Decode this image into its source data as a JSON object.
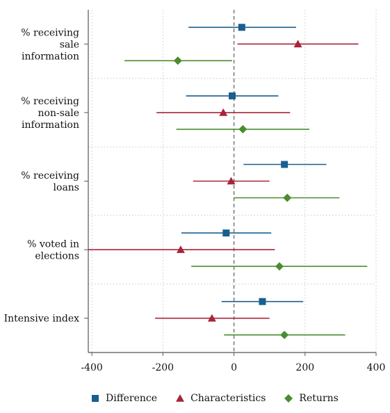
{
  "chart_data": {
    "type": "scatter",
    "subtype": "coefficient-plot",
    "orientation": "horizontal",
    "title": "",
    "xlabel": "",
    "ylabel": "",
    "xlim": [
      -410,
      400
    ],
    "xticks": [
      -400,
      -200,
      0,
      200,
      400
    ],
    "xtick_labels": [
      "-400",
      "-200",
      "0",
      "200",
      "400"
    ],
    "reference_line": 0,
    "grid": true,
    "legend_position": "bottom",
    "categories": [
      "% receiving\nsale\ninformation",
      "% receiving\nnon-sale\ninformation",
      "% receiving\nloans",
      "% voted in\nelections",
      "Intensive index"
    ],
    "series": [
      {
        "name": "Difference",
        "color": "#1b5e8f",
        "marker": "square",
        "points": [
          {
            "est": 22,
            "lo": -128,
            "hi": 175
          },
          {
            "est": -5,
            "lo": -135,
            "hi": 125
          },
          {
            "est": 142,
            "lo": 27,
            "hi": 260
          },
          {
            "est": -22,
            "lo": -148,
            "hi": 105
          },
          {
            "est": 80,
            "lo": -35,
            "hi": 195
          }
        ]
      },
      {
        "name": "Characteristics",
        "color": "#a8243a",
        "marker": "triangle",
        "points": [
          {
            "est": 180,
            "lo": 10,
            "hi": 350
          },
          {
            "est": -30,
            "lo": -218,
            "hi": 158
          },
          {
            "est": -8,
            "lo": -115,
            "hi": 100
          },
          {
            "est": -150,
            "lo": -410,
            "hi": 115
          },
          {
            "est": -62,
            "lo": -222,
            "hi": 100
          }
        ]
      },
      {
        "name": "Returns",
        "color": "#4a8c2e",
        "marker": "diamond",
        "points": [
          {
            "est": -158,
            "lo": -308,
            "hi": -5
          },
          {
            "est": 25,
            "lo": -162,
            "hi": 212
          },
          {
            "est": 150,
            "lo": 0,
            "hi": 297
          },
          {
            "est": 128,
            "lo": -120,
            "hi": 375
          },
          {
            "est": 142,
            "lo": -28,
            "hi": 313
          }
        ]
      }
    ]
  }
}
